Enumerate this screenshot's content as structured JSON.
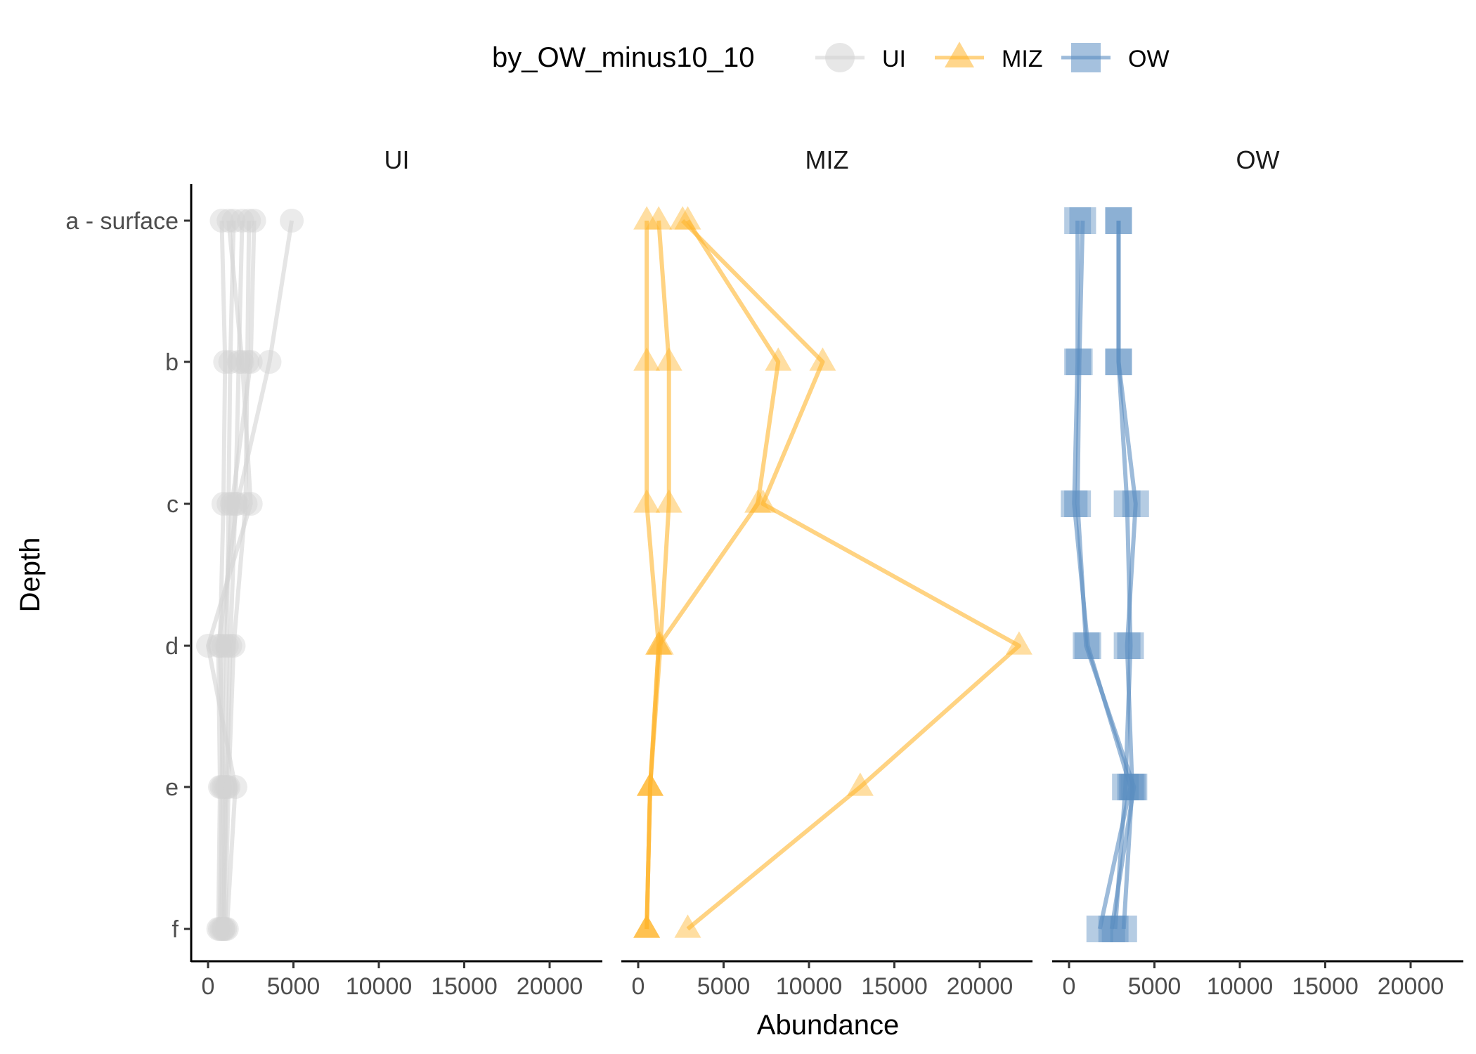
{
  "chart_data": {
    "type": "line",
    "xlabel": "Abundance",
    "ylabel": "Depth",
    "legend": {
      "title": "by_OW_minus10_10",
      "position": "top",
      "entries": [
        {
          "label": "UI",
          "shape": "circle",
          "color": "#D3D3D3"
        },
        {
          "label": "MIZ",
          "shape": "triangle",
          "color": "#FFB52E"
        },
        {
          "label": "OW",
          "shape": "square",
          "color": "#5B8EC2"
        }
      ]
    },
    "depth_categories": [
      "a - surface",
      "b",
      "c",
      "d",
      "e",
      "f"
    ],
    "xlim": [
      0,
      23000
    ],
    "x_ticks": [
      0,
      5000,
      10000,
      15000,
      20000
    ],
    "x_tick_labels": [
      "0",
      "5000",
      "10000",
      "15000",
      "20000"
    ],
    "panels": [
      {
        "title": "UI",
        "shape": "circle",
        "color": "#D3D3D3",
        "series": [
          [
            800,
            1000,
            900,
            700,
            900,
            800
          ],
          [
            1500,
            1300,
            1200,
            1100,
            1000,
            900
          ],
          [
            2000,
            1800,
            1600,
            1300,
            1100,
            900
          ],
          [
            2400,
            2300,
            2200,
            1500,
            1200,
            1000
          ],
          [
            2700,
            2500,
            1400,
            900,
            800,
            700
          ],
          [
            4900,
            3600,
            1700,
            600,
            700,
            600
          ],
          [
            1200,
            2000,
            2500,
            0,
            1600,
            1100
          ]
        ]
      },
      {
        "title": "MIZ",
        "shape": "triangle",
        "color": "#FFB52E",
        "series": [
          [
            500,
            500,
            500,
            1200,
            700,
            500
          ],
          [
            1200,
            1800,
            1800,
            1300,
            700,
            500
          ],
          [
            2600,
            10800,
            7300,
            22300,
            13000,
            2900
          ],
          [
            2900,
            8200,
            7000,
            1200,
            700,
            500
          ]
        ]
      },
      {
        "title": "OW",
        "shape": "square",
        "color": "#5B8EC2",
        "series": [
          [
            500,
            500,
            300,
            1100,
            3600,
            1800
          ],
          [
            800,
            600,
            500,
            1000,
            3800,
            2500
          ],
          [
            2900,
            2900,
            3900,
            3400,
            3700,
            3200
          ],
          [
            2900,
            2900,
            3400,
            3600,
            3300,
            2700
          ]
        ]
      }
    ]
  }
}
